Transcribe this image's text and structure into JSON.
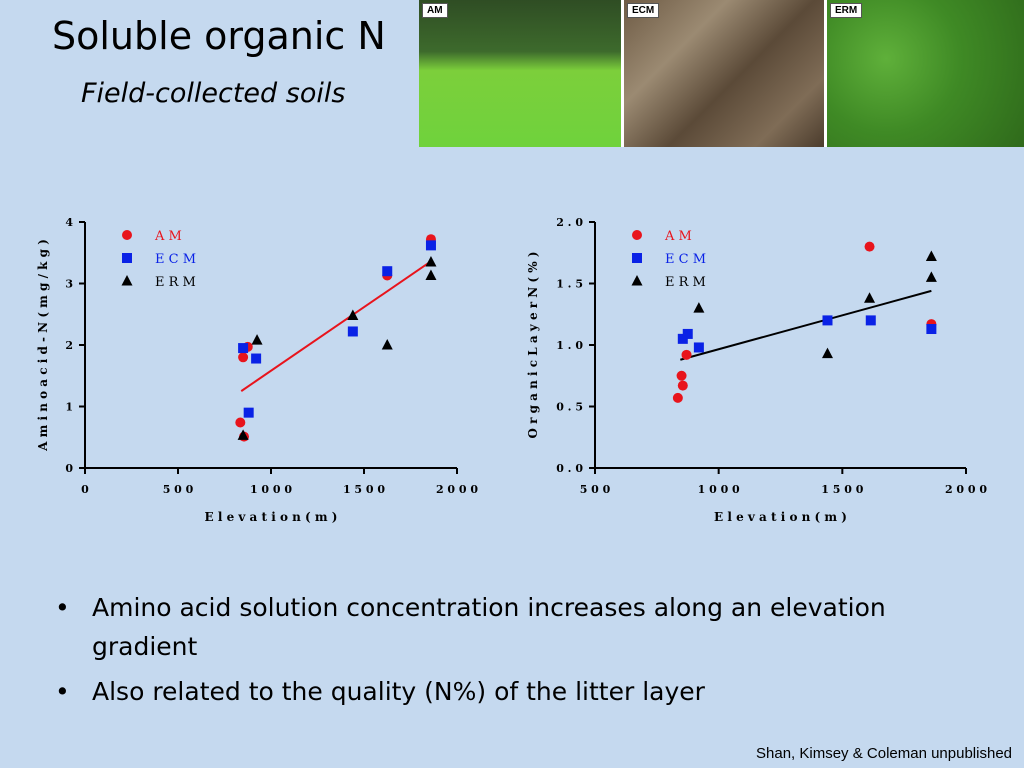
{
  "slide": {
    "title": "Soluble organic N",
    "subtitle": "Field-collected soils",
    "photo_tags": [
      "AM",
      "ECM",
      "ERM"
    ],
    "bullets": [
      "Amino acid solution concentration increases along an elevation gradient",
      "Also related to the quality (N%) of the litter layer"
    ],
    "credit": "Shan, Kimsey & Coleman  unpublished"
  },
  "colors": {
    "AM": "#e8141c",
    "ECM": "#0a22e6",
    "ERM": "#000000",
    "fit_left": "#e8141c",
    "fit_right": "#000000"
  },
  "chart_data": [
    {
      "type": "scatter",
      "xlabel": "E l e v a t i o n  ( m )",
      "ylabel": "A m i n o  a c i d - N  ( m g / k g )",
      "xlim": [
        0,
        2000
      ],
      "ylim": [
        0,
        4
      ],
      "xticks": [
        "0",
        "5 0 0",
        "1 0 0 0",
        "1 5 0 0",
        "2 0 0 0"
      ],
      "yticks": [
        "0",
        "1",
        "2",
        "3",
        "4"
      ],
      "legend_position": "top-left",
      "series": [
        {
          "name": "A M",
          "marker": "circle",
          "points": [
            [
              835,
              0.74
            ],
            [
              850,
              1.8
            ],
            [
              855,
              0.51
            ],
            [
              875,
              1.97
            ],
            [
              1625,
              3.13
            ],
            [
              1860,
              3.72
            ]
          ]
        },
        {
          "name": "E C M",
          "marker": "square",
          "points": [
            [
              850,
              1.95
            ],
            [
              880,
              0.9
            ],
            [
              920,
              1.78
            ],
            [
              1440,
              2.22
            ],
            [
              1625,
              3.2
            ],
            [
              1860,
              3.62
            ]
          ]
        },
        {
          "name": "E R M",
          "marker": "triangle",
          "points": [
            [
              850,
              0.53
            ],
            [
              925,
              2.08
            ],
            [
              1440,
              2.48
            ],
            [
              1625,
              2.0
            ],
            [
              1860,
              3.13
            ],
            [
              1860,
              3.35
            ]
          ]
        }
      ],
      "fit": {
        "x": [
          840,
          1860
        ],
        "y": [
          1.25,
          3.36
        ]
      }
    },
    {
      "type": "scatter",
      "xlabel": "E l e v a t i o n ( m )",
      "ylabel": "O r g a n i c  L a y e r  N  ( % )",
      "xlim": [
        500,
        2000
      ],
      "ylim": [
        0,
        2
      ],
      "xticks": [
        "5 0 0",
        "1 0 0 0",
        "1 5 0 0",
        "2 0 0 0"
      ],
      "yticks": [
        "0 . 0",
        "0 . 5",
        "1 . 0",
        "1 . 5",
        "2 . 0"
      ],
      "legend_position": "top-left",
      "series": [
        {
          "name": "A M",
          "marker": "circle",
          "points": [
            [
              835,
              0.57
            ],
            [
              850,
              0.75
            ],
            [
              855,
              0.67
            ],
            [
              870,
              0.92
            ],
            [
              1610,
              1.8
            ],
            [
              1860,
              1.17
            ]
          ]
        },
        {
          "name": "E C M",
          "marker": "square",
          "points": [
            [
              855,
              1.05
            ],
            [
              875,
              1.09
            ],
            [
              920,
              0.98
            ],
            [
              1440,
              1.2
            ],
            [
              1615,
              1.2
            ],
            [
              1860,
              1.13
            ]
          ]
        },
        {
          "name": "E R M",
          "marker": "triangle",
          "points": [
            [
              920,
              1.3
            ],
            [
              1440,
              0.93
            ],
            [
              1610,
              1.38
            ],
            [
              1860,
              1.55
            ],
            [
              1860,
              1.72
            ]
          ]
        }
      ],
      "fit": {
        "x": [
          845,
          1860
        ],
        "y": [
          0.88,
          1.44
        ]
      }
    }
  ]
}
